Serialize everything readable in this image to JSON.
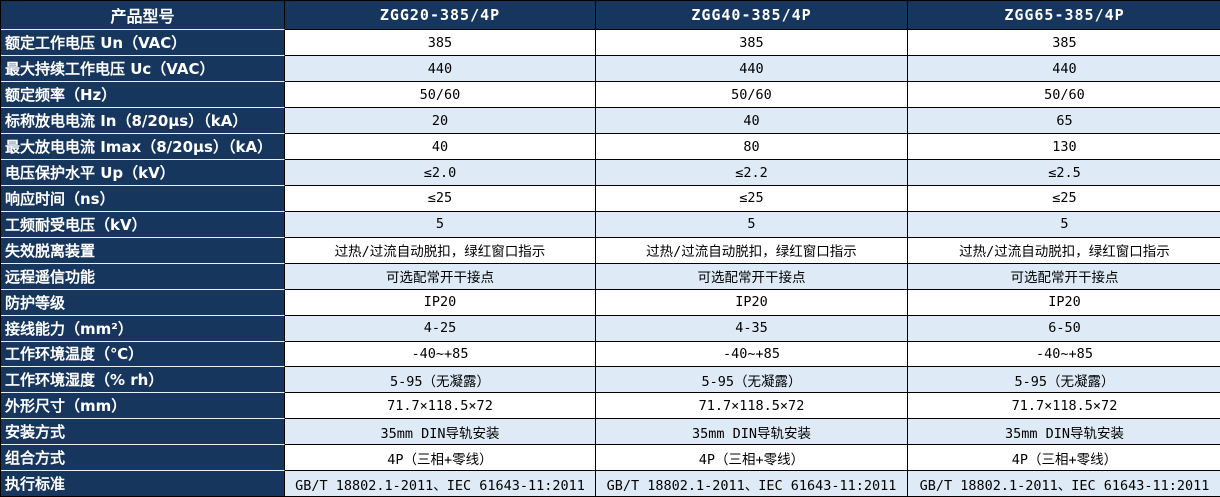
{
  "colors": {
    "header_bg": "#17365D",
    "header_text": "#FFFFFF",
    "row_bg": "#FFFFFF",
    "row_alt_bg": "#DEEBF7",
    "grid_border": "#000000",
    "label_separator": "#E9EEF5"
  },
  "table": {
    "corner_label": "产品型号",
    "columns": [
      "ZGG20-385/4P",
      "ZGG40-385/4P",
      "ZGG65-385/4P"
    ],
    "rows": [
      {
        "label": "额定工作电压 Un（VAC）",
        "values": [
          "385",
          "385",
          "385"
        ]
      },
      {
        "label": "最大持续工作电压 Uc（VAC）",
        "values": [
          "440",
          "440",
          "440"
        ]
      },
      {
        "label": "额定频率（Hz）",
        "values": [
          "50/60",
          "50/60",
          "50/60"
        ]
      },
      {
        "label": "标称放电电流 In（8/20μs）（kA）",
        "values": [
          "20",
          "40",
          "65"
        ]
      },
      {
        "label": "最大放电电流 Imax（8/20μs）（kA）",
        "values": [
          "40",
          "80",
          "130"
        ]
      },
      {
        "label": "电压保护水平 Up（kV）",
        "values": [
          "≤2.0",
          "≤2.2",
          "≤2.5"
        ]
      },
      {
        "label": "响应时间（ns）",
        "values": [
          "≤25",
          "≤25",
          "≤25"
        ]
      },
      {
        "label": "工频耐受电压（kV）",
        "values": [
          "5",
          "5",
          "5"
        ]
      },
      {
        "label": "失效脱离装置",
        "values": [
          "过热/过流自动脱扣，绿红窗口指示",
          "过热/过流自动脱扣，绿红窗口指示",
          "过热/过流自动脱扣，绿红窗口指示"
        ]
      },
      {
        "label": "远程遥信功能",
        "values": [
          "可选配常开干接点",
          "可选配常开干接点",
          "可选配常开干接点"
        ]
      },
      {
        "label": "防护等级",
        "values": [
          "IP20",
          "IP20",
          "IP20"
        ]
      },
      {
        "label": "接线能力（mm²）",
        "values": [
          "4-25",
          "4-35",
          "6-50"
        ]
      },
      {
        "label": "工作环境温度（℃）",
        "values": [
          "-40~+85",
          "-40~+85",
          "-40~+85"
        ]
      },
      {
        "label": "工作环境湿度（% rh）",
        "values": [
          "5-95（无凝露）",
          "5-95（无凝露）",
          "5-95（无凝露）"
        ]
      },
      {
        "label": "外形尺寸（mm）",
        "values": [
          "71.7×118.5×72",
          "71.7×118.5×72",
          "71.7×118.5×72"
        ]
      },
      {
        "label": "安装方式",
        "values": [
          "35mm DIN导轨安装",
          "35mm DIN导轨安装",
          "35mm DIN导轨安装"
        ]
      },
      {
        "label": "组合方式",
        "values": [
          "4P（三相+零线）",
          "4P（三相+零线）",
          "4P（三相+零线）"
        ]
      },
      {
        "label": "执行标准",
        "values": [
          "GB/T 18802.1-2011、IEC 61643-11:2011",
          "GB/T 18802.1-2011、IEC 61643-11:2011",
          "GB/T 18802.1-2011、IEC 61643-11:2011"
        ]
      }
    ]
  }
}
